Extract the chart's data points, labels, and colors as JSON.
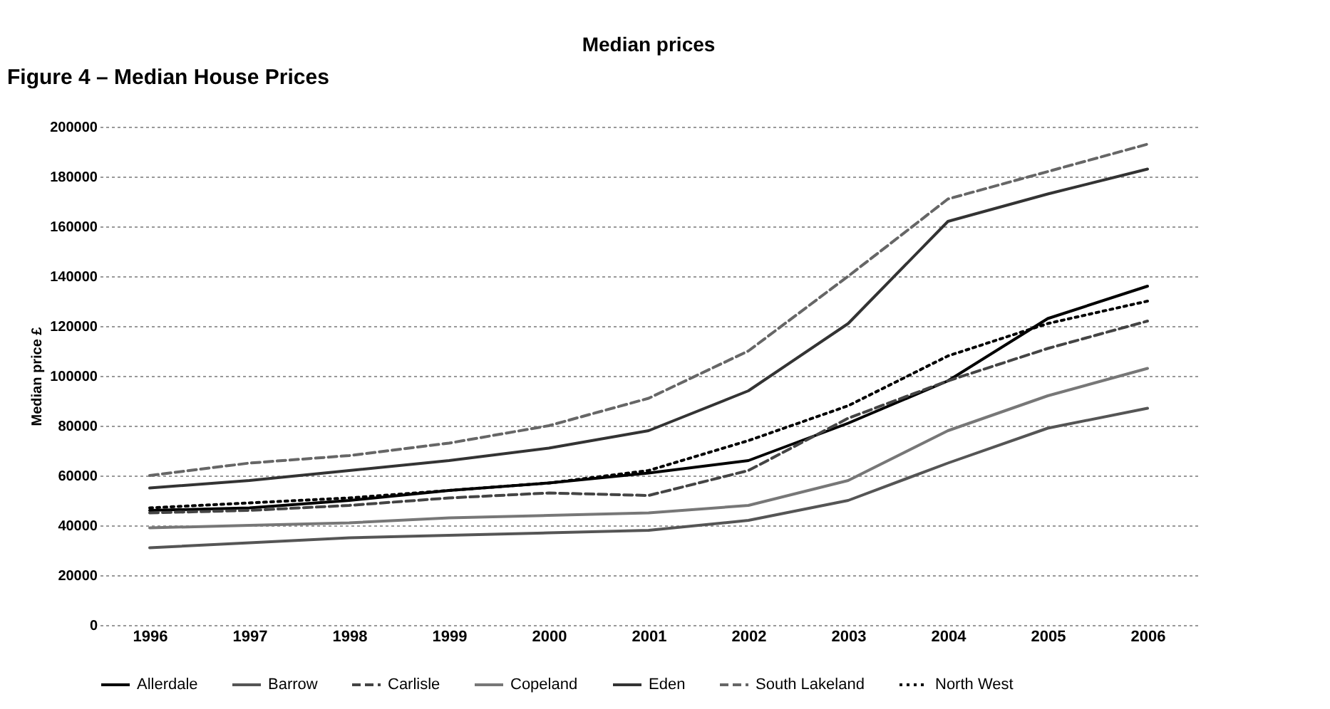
{
  "chart_data": {
    "type": "line",
    "title": "Median prices",
    "ylabel": "Median price £",
    "annotations": [
      "Figure 4 – Median House Prices"
    ],
    "categories": [
      "1996",
      "1997",
      "1998",
      "1999",
      "2000",
      "2001",
      "2002",
      "2003",
      "2004",
      "2005",
      "2006"
    ],
    "series": [
      {
        "name": "Allerdale",
        "color": "#000000",
        "line_style": "solid",
        "values": [
          46000,
          47000,
          50000,
          54000,
          57000,
          61000,
          66000,
          81000,
          98000,
          123000,
          136000
        ]
      },
      {
        "name": "Barrow",
        "color": "#555555",
        "line_style": "solid",
        "values": [
          31000,
          33000,
          35000,
          36000,
          37000,
          38000,
          42000,
          50000,
          65000,
          79000,
          87000
        ]
      },
      {
        "name": "Carlisle",
        "color": "#444444",
        "line_style": "dashed",
        "values": [
          45000,
          46000,
          48000,
          51000,
          53000,
          52000,
          62000,
          83000,
          98000,
          111000,
          122000
        ]
      },
      {
        "name": "Copeland",
        "color": "#777777",
        "line_style": "solid",
        "values": [
          39000,
          40000,
          41000,
          43000,
          44000,
          45000,
          48000,
          58000,
          78000,
          92000,
          103000
        ]
      },
      {
        "name": "Eden",
        "color": "#333333",
        "line_style": "solid",
        "values": [
          55000,
          58000,
          62000,
          66000,
          71000,
          78000,
          94000,
          121000,
          162000,
          173000,
          183000
        ]
      },
      {
        "name": "South Lakeland",
        "color": "#666666",
        "line_style": "dashed",
        "values": [
          60000,
          65000,
          68000,
          73000,
          80000,
          91000,
          110000,
          140000,
          171000,
          182000,
          193000
        ]
      },
      {
        "name": "North West",
        "color": "#000000",
        "line_style": "dotted",
        "values": [
          47000,
          49000,
          51000,
          54000,
          57000,
          62000,
          74000,
          88000,
          108000,
          121000,
          130000
        ]
      }
    ],
    "ylim": [
      0,
      200000
    ],
    "yticks": [
      0,
      20000,
      40000,
      60000,
      80000,
      100000,
      120000,
      140000,
      160000,
      180000,
      200000
    ],
    "grid": "y",
    "legend": "bottom",
    "marker": "none"
  }
}
